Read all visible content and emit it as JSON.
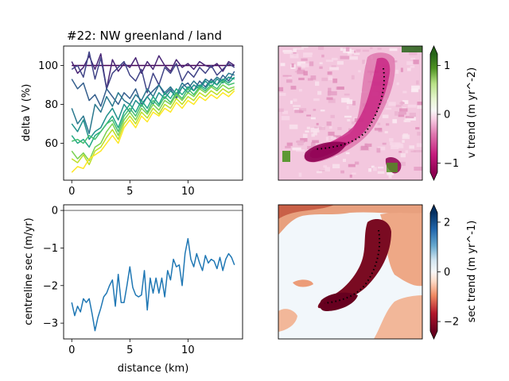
{
  "chart_data": [
    {
      "id": "delta_v",
      "type": "line",
      "title": "#22: NW greenland / land",
      "xlabel": "",
      "ylabel": "delta V (%)",
      "xlim": [
        -0.7,
        14.7
      ],
      "ylim": [
        41,
        110
      ],
      "xticks": [
        0,
        5,
        10
      ],
      "yticks": [
        60,
        80,
        100
      ],
      "x": [
        0,
        0.5,
        1,
        1.5,
        2,
        2.5,
        3,
        3.5,
        4,
        4.5,
        5,
        5.5,
        6,
        6.5,
        7,
        7.5,
        8,
        8.5,
        9,
        9.5,
        10,
        10.5,
        11,
        11.5,
        12,
        12.5,
        13,
        13.5,
        14
      ],
      "series": [
        {
          "color": "#440154",
          "values": [
            100,
            100,
            100,
            100,
            100,
            100,
            100,
            100,
            100,
            100,
            100,
            100,
            100,
            100,
            100,
            100,
            100,
            100,
            100,
            100,
            100,
            100,
            100,
            100,
            100,
            100,
            100,
            100,
            100
          ]
        },
        {
          "color": "#482475",
          "values": [
            102,
            96,
            99,
            105,
            98,
            106,
            88,
            103,
            97,
            101,
            99,
            104,
            96,
            102,
            98,
            105,
            100,
            97,
            103,
            99,
            101,
            98,
            102,
            100,
            99,
            101,
            97,
            102,
            100
          ]
        },
        {
          "color": "#414487",
          "values": [
            98,
            100,
            94,
            107,
            93,
            104,
            88,
            96,
            99,
            102,
            95,
            92,
            98,
            86,
            96,
            90,
            99,
            96,
            101,
            92,
            97,
            94,
            99,
            96,
            100,
            95,
            98,
            101,
            99
          ]
        },
        {
          "color": "#355f8d",
          "values": [
            93,
            88,
            91,
            82,
            85,
            79,
            88,
            84,
            80,
            86,
            83,
            88,
            80,
            84,
            87,
            90,
            85,
            88,
            83,
            89,
            91,
            87,
            92,
            89,
            93,
            90,
            95,
            92,
            97
          ]
        },
        {
          "color": "#2a788e",
          "values": [
            78,
            70,
            74,
            65,
            80,
            76,
            84,
            79,
            86,
            82,
            80,
            85,
            82,
            88,
            84,
            90,
            86,
            89,
            85,
            91,
            88,
            92,
            89,
            93,
            91,
            94,
            92,
            96,
            95
          ]
        },
        {
          "color": "#21918c",
          "values": [
            70,
            66,
            72,
            62,
            66,
            68,
            74,
            78,
            72,
            80,
            76,
            82,
            79,
            84,
            80,
            86,
            83,
            87,
            84,
            89,
            86,
            90,
            88,
            92,
            89,
            93,
            91,
            94,
            93
          ]
        },
        {
          "color": "#22a884",
          "values": [
            64,
            60,
            62,
            58,
            64,
            66,
            70,
            74,
            68,
            76,
            80,
            76,
            82,
            78,
            84,
            80,
            86,
            83,
            88,
            85,
            89,
            87,
            90,
            88,
            92,
            90,
            93,
            91,
            94
          ]
        },
        {
          "color": "#44bf70",
          "values": [
            61,
            62,
            60,
            64,
            62,
            66,
            70,
            72,
            66,
            74,
            78,
            74,
            80,
            76,
            82,
            79,
            84,
            81,
            86,
            83,
            88,
            85,
            89,
            87,
            90,
            88,
            92,
            90,
            91
          ]
        },
        {
          "color": "#7ad151",
          "values": [
            56,
            52,
            55,
            51,
            58,
            60,
            66,
            70,
            64,
            72,
            76,
            72,
            78,
            75,
            80,
            77,
            82,
            80,
            85,
            82,
            86,
            84,
            88,
            86,
            89,
            87,
            90,
            88,
            89
          ]
        },
        {
          "color": "#bddf26",
          "values": [
            52,
            50,
            54,
            49,
            56,
            58,
            63,
            67,
            62,
            70,
            74,
            70,
            76,
            73,
            78,
            75,
            80,
            78,
            83,
            80,
            84,
            82,
            86,
            84,
            87,
            85,
            88,
            86,
            88
          ]
        },
        {
          "color": "#fde725",
          "values": [
            45,
            48,
            47,
            52,
            54,
            56,
            60,
            64,
            60,
            68,
            72,
            68,
            74,
            71,
            76,
            74,
            78,
            76,
            81,
            78,
            82,
            80,
            84,
            82,
            85,
            83,
            86,
            84,
            87
          ]
        }
      ]
    },
    {
      "id": "centreline_sec",
      "type": "line",
      "title": "",
      "xlabel": "distance (km)",
      "ylabel": "centreline sec (m/yr)",
      "xlim": [
        -0.7,
        14.7
      ],
      "ylim": [
        -3.42,
        0.15
      ],
      "xticks": [
        0,
        5,
        10
      ],
      "yticks": [
        0,
        -1,
        -2,
        -3
      ],
      "reference_line": 0,
      "x": [
        0,
        0.25,
        0.5,
        0.75,
        1,
        1.25,
        1.5,
        1.75,
        2,
        2.25,
        2.5,
        2.75,
        3,
        3.25,
        3.5,
        3.75,
        4,
        4.25,
        4.5,
        4.75,
        5,
        5.25,
        5.5,
        5.75,
        6,
        6.25,
        6.5,
        6.75,
        7,
        7.25,
        7.5,
        7.75,
        8,
        8.25,
        8.5,
        8.75,
        9,
        9.25,
        9.5,
        9.75,
        10,
        10.25,
        10.5,
        10.75,
        11,
        11.25,
        11.5,
        11.75,
        12,
        12.25,
        12.5,
        12.75,
        13,
        13.25,
        13.5,
        13.75,
        14
      ],
      "series": [
        {
          "color": "#1f77b4",
          "values": [
            -2.45,
            -2.8,
            -2.55,
            -2.7,
            -2.35,
            -2.45,
            -2.35,
            -2.75,
            -3.2,
            -2.85,
            -2.6,
            -2.3,
            -2.2,
            -2.0,
            -1.85,
            -2.55,
            -1.7,
            -2.45,
            -2.45,
            -2.0,
            -1.5,
            -2.05,
            -2.25,
            -2.3,
            -2.25,
            -1.6,
            -2.65,
            -1.8,
            -2.2,
            -1.8,
            -2.2,
            -1.8,
            -2.3,
            -1.6,
            -1.85,
            -1.3,
            -1.5,
            -1.45,
            -2.0,
            -1.15,
            -0.75,
            -1.3,
            -1.5,
            -1.15,
            -1.4,
            -1.6,
            -1.2,
            -1.4,
            -1.3,
            -1.35,
            -1.55,
            -1.25,
            -1.6,
            -1.3,
            -1.15,
            -1.25,
            -1.45
          ]
        }
      ]
    },
    {
      "id": "v_trend_map",
      "type": "heatmap",
      "colorbar_label": "v trend (m yr^-2)",
      "colorbar_ticks": [
        1,
        0,
        -1
      ],
      "colorbar_range": [
        -1.35,
        1.4
      ],
      "colormap": "PiYG"
    },
    {
      "id": "sec_trend_map",
      "type": "heatmap",
      "colorbar_label": "sec trend (m yr^-1)",
      "colorbar_ticks": [
        2,
        0,
        -2
      ],
      "colorbar_range": [
        -2.7,
        2.7
      ],
      "colormap": "RdBu"
    }
  ]
}
